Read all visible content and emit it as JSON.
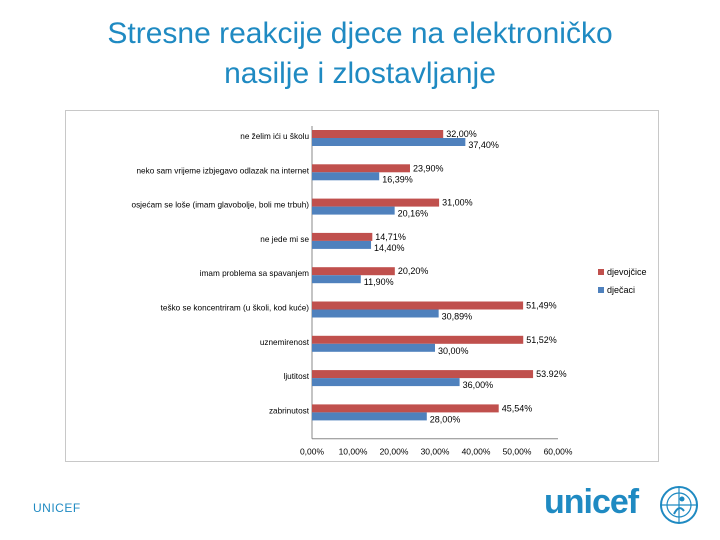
{
  "slide": {
    "title_line1": "Stresne reakcije djece na elektroničko",
    "title_line2": "nasilje i zlostavljanje",
    "footer_left": "UNICEF",
    "logo_text": "unicef"
  },
  "colors": {
    "title": "#1f8ac2",
    "series_girls": "#c0504d",
    "series_boys": "#4f81bd"
  },
  "chart_data": {
    "type": "bar",
    "orientation": "horizontal",
    "categories": [
      "ne želim ići u školu",
      "neko sam vrijeme izbjegavo odlazak na internet",
      "osjećam se loše (imam glavobolje, boli me trbuh)",
      "ne jede mi se",
      "imam problema sa spavanjem",
      "teško se koncentriram (u školi, kod kuće)",
      "uznemirenost",
      "ljutitost",
      "zabrinutost"
    ],
    "series": [
      {
        "name": "djevojčice",
        "values": [
          32.0,
          23.9,
          31.0,
          14.71,
          20.2,
          51.49,
          51.52,
          53.92,
          45.54
        ],
        "labels": [
          "32,00%",
          "23,90%",
          "31,00%",
          "14,71%",
          "20,20%",
          "51,49%",
          "51,52%",
          "53.92%",
          "45,54%"
        ]
      },
      {
        "name": "dječaci",
        "values": [
          37.4,
          16.39,
          20.16,
          14.4,
          11.9,
          30.89,
          30.0,
          36.0,
          28.0
        ],
        "labels": [
          "37,40%",
          "16,39%",
          "20,16%",
          "14,40%",
          "11,90%",
          "30,89%",
          "30,00%",
          "36,00%",
          "28,00%"
        ]
      }
    ],
    "xlim": [
      0,
      60
    ],
    "xticks": [
      "0,00%",
      "10,00%",
      "20,00%",
      "30,00%",
      "40,00%",
      "50,00%",
      "60,00%"
    ],
    "legend": "right",
    "grid": false
  }
}
